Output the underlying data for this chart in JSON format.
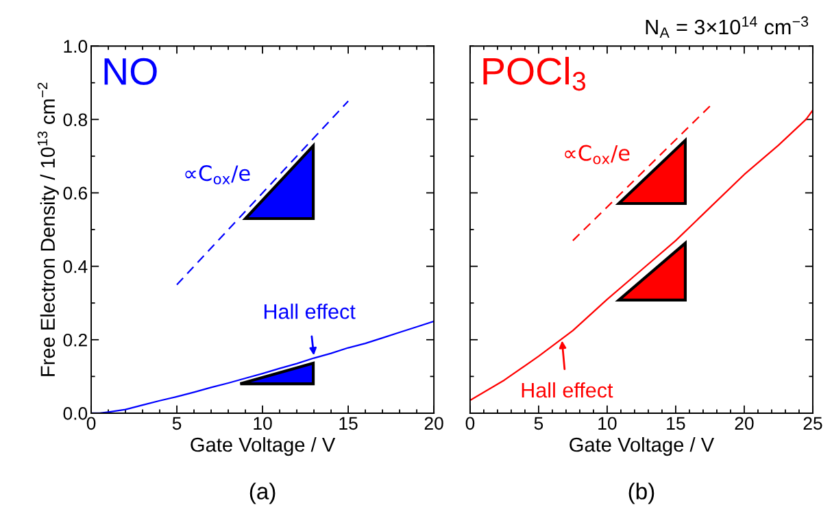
{
  "chart_data": [
    {
      "type": "line",
      "title": "(a)",
      "xlabel": "Gate Voltage / V",
      "ylabel": "Free Electron Density / 10$^{13}$ cm$^{−2}$",
      "xlim": [
        0,
        20
      ],
      "xticks": [
        0,
        5,
        10,
        15,
        20
      ],
      "ylim": [
        0,
        1.0
      ],
      "yticks": [
        {
          "value": 0,
          "label": "0.0"
        },
        0.2,
        0.4,
        0.6,
        0.8,
        {
          "value": 1,
          "label": "1.0"
        }
      ],
      "grid": false,
      "legend": false,
      "series": [
        {
          "color": "#0000ff",
          "line_style": "solid",
          "x": [
            0,
            0.5,
            1,
            2,
            3,
            4,
            5,
            6,
            7,
            8,
            9,
            10,
            11,
            12,
            13,
            14,
            15,
            16,
            17,
            18,
            19,
            20
          ],
          "values": [
            0,
            0,
            0.003,
            0.01,
            0.022,
            0.034,
            0.045,
            0.057,
            0.07,
            0.082,
            0.095,
            0.108,
            0.122,
            0.135,
            0.15,
            0.163,
            0.178,
            0.19,
            0.205,
            0.22,
            0.235,
            0.25
          ]
        },
        {
          "name": "∝C$_{ox}$/e",
          "color": "#0000ff",
          "line_style": "dashed",
          "x": [
            5,
            15
          ],
          "values": [
            0.35,
            0.85
          ]
        }
      ],
      "annotations": [
        "NO",
        {
          "text": "Hall effect",
          "x": 13,
          "y": 0.155
        }
      ]
    },
    {
      "type": "line",
      "title": "(b)",
      "xlabel": "Gate Voltage / V",
      "xlim": [
        0,
        25
      ],
      "xticks": [
        0,
        5,
        10,
        15,
        20,
        25
      ],
      "ylim": [
        0,
        1.0
      ],
      "yticks": [
        0.2,
        0.4,
        0.6,
        0.8
      ],
      "tick_labels": "x",
      "grid": false,
      "legend": false,
      "series": [
        {
          "color": "#ff0000",
          "line_style": "solid",
          "x": [
            0,
            2.5,
            5,
            7.5,
            10,
            12.5,
            15,
            17.5,
            20,
            22.5,
            24.5,
            25
          ],
          "values": [
            0.035,
            0.09,
            0.155,
            0.225,
            0.31,
            0.39,
            0.47,
            0.56,
            0.65,
            0.73,
            0.8,
            0.825
          ]
        },
        {
          "name": "∝C$_{ox}$/e",
          "color": "#ff0000",
          "line_style": "dashed",
          "x": [
            7.5,
            17.6
          ],
          "values": [
            0.47,
            0.84
          ]
        }
      ],
      "annotations": [
        "POCl$_{3}$",
        "N$_{A}$ = 3×10$^{14}$ cm$^{−3}$",
        {
          "text": "Hall effect",
          "x": 6.7,
          "y": 0.2
        }
      ]
    }
  ]
}
